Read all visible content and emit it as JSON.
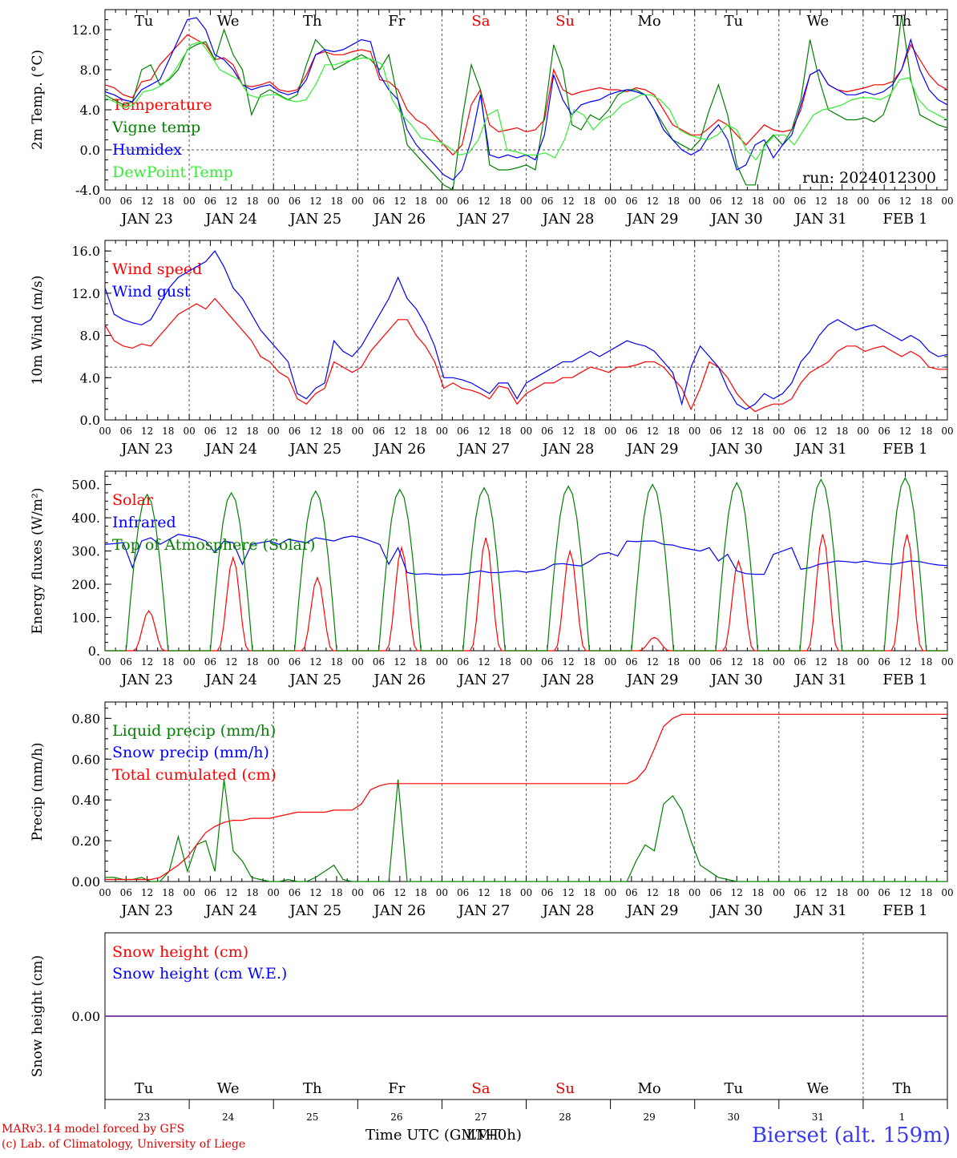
{
  "chart_data": [
    {
      "type": "line",
      "ylabel": "2m Temp. (°C)",
      "yticks": [
        "-4.0",
        "0.0",
        "4.0",
        "8.0",
        "12.0"
      ],
      "ylim": [
        -4,
        14
      ],
      "ref_line": 0,
      "day_names": [
        "Tu",
        "We",
        "Th",
        "Fr",
        "Sa",
        "Su",
        "Mo",
        "Tu",
        "We",
        "Th"
      ],
      "weekend_days": [
        4,
        5
      ],
      "annotation": "run: 2024012300",
      "series": [
        {
          "name": "Temperature",
          "color": "#ff0000",
          "values": [
            6.5,
            6.2,
            5.5,
            5.2,
            6.8,
            7.0,
            8.5,
            9.5,
            10.5,
            11.5,
            11.0,
            10.5,
            9.0,
            9.2,
            8.5,
            6.5,
            6.3,
            6.5,
            6.8,
            6.0,
            5.8,
            6.0,
            7.5,
            9.5,
            9.8,
            9.5,
            9.5,
            9.8,
            10.0,
            9.8,
            7.0,
            6.8,
            6.0,
            4.0,
            3.0,
            2.5,
            1.5,
            0.5,
            -0.5,
            0.5,
            4.5,
            6.0,
            2.5,
            1.8,
            2.0,
            2.2,
            1.8,
            2.0,
            3.0,
            8.0,
            6.0,
            5.5,
            5.8,
            6.0,
            6.2,
            6.0,
            6.0,
            5.8,
            6.2,
            6.0,
            5.5,
            4.0,
            2.5,
            2.0,
            1.5,
            1.5,
            2.2,
            3.0,
            2.5,
            1.5,
            0.5,
            1.5,
            2.5,
            2.0,
            1.8,
            2.0,
            4.0,
            7.5,
            8.0,
            6.5,
            6.0,
            5.8,
            6.0,
            6.2,
            6.5,
            6.5,
            6.8,
            8.0,
            10.5,
            9.0,
            7.5,
            6.5,
            6.0
          ]
        },
        {
          "name": "Vigne temp",
          "color": "#008000",
          "values": [
            5.5,
            5.0,
            4.5,
            4.8,
            8.0,
            8.5,
            6.5,
            7.0,
            8.0,
            10.0,
            10.5,
            10.8,
            9.0,
            12.0,
            9.5,
            8.0,
            3.5,
            5.5,
            6.0,
            5.5,
            5.0,
            5.5,
            8.5,
            11.0,
            10.0,
            8.0,
            8.5,
            9.0,
            9.5,
            9.0,
            8.0,
            9.5,
            5.0,
            0.5,
            -0.5,
            -1.5,
            -2.5,
            -3.5,
            -4.0,
            3.0,
            8.5,
            6.0,
            -1.5,
            -2.0,
            -2.0,
            -1.8,
            -1.5,
            -2.0,
            3.5,
            10.5,
            8.0,
            2.5,
            2.0,
            3.5,
            3.0,
            4.0,
            5.5,
            6.0,
            6.0,
            5.5,
            4.0,
            2.5,
            1.0,
            0.5,
            0.0,
            1.0,
            4.0,
            6.5,
            3.5,
            -1.5,
            -3.5,
            -3.5,
            0.5,
            1.5,
            0.5,
            2.0,
            5.0,
            11.0,
            7.0,
            4.0,
            3.5,
            3.0,
            3.0,
            3.2,
            2.8,
            3.5,
            6.0,
            13.5,
            7.0,
            3.5,
            3.0,
            2.5,
            2.2
          ]
        },
        {
          "name": "Humidex",
          "color": "#0000ff",
          "values": [
            5.8,
            5.5,
            5.0,
            4.8,
            6.0,
            6.5,
            7.0,
            9.0,
            11.0,
            13.0,
            13.2,
            12.0,
            9.5,
            9.0,
            8.0,
            6.5,
            6.0,
            6.3,
            6.5,
            5.8,
            5.5,
            5.8,
            7.0,
            9.5,
            10.0,
            9.8,
            10.0,
            10.5,
            11.0,
            10.8,
            7.5,
            6.0,
            5.0,
            2.0,
            0.5,
            -0.5,
            -1.5,
            -2.5,
            -3.0,
            -2.0,
            1.0,
            5.5,
            -0.5,
            -0.8,
            -0.5,
            -0.8,
            -0.5,
            -1.0,
            1.5,
            7.5,
            5.0,
            3.5,
            4.5,
            4.8,
            5.0,
            5.5,
            5.8,
            6.0,
            5.8,
            5.5,
            4.0,
            2.0,
            1.0,
            0.0,
            -0.5,
            0.0,
            1.5,
            2.5,
            1.0,
            -2.0,
            -1.5,
            0.5,
            1.0,
            -0.8,
            0.5,
            1.5,
            4.5,
            7.5,
            8.0,
            6.5,
            6.0,
            5.5,
            5.5,
            5.8,
            5.5,
            5.8,
            6.5,
            8.0,
            11.0,
            8.0,
            6.0,
            5.0,
            4.5
          ]
        },
        {
          "name": "DewPoint Temp",
          "color": "#33ee33",
          "values": [
            5.2,
            4.8,
            4.2,
            4.5,
            5.8,
            6.0,
            6.5,
            7.5,
            9.0,
            10.5,
            10.8,
            9.5,
            8.0,
            7.5,
            7.0,
            5.5,
            5.2,
            5.5,
            5.5,
            5.0,
            4.8,
            5.0,
            6.5,
            8.5,
            8.5,
            8.8,
            9.0,
            9.2,
            9.0,
            8.5,
            5.0,
            3.5,
            2.5,
            1.2,
            1.0,
            0.8,
            0.2,
            -0.5,
            -0.3,
            1.0,
            3.5,
            4.0,
            0.0,
            -0.2,
            -0.5,
            -0.5,
            -0.3,
            -0.8,
            1.0,
            4.0,
            3.5,
            2.0,
            3.0,
            3.5,
            4.5,
            5.0,
            5.5,
            5.5,
            5.0,
            4.0,
            2.0,
            1.5,
            1.2,
            1.0,
            1.5,
            2.5,
            2.0,
            0.0,
            -1.0,
            0.5,
            1.5,
            1.5,
            0.5,
            2.0,
            3.5,
            4.0,
            4.2,
            4.5,
            5.0,
            5.2,
            5.2,
            5.0,
            5.5,
            7.0,
            7.2,
            5.0,
            4.0,
            3.5,
            3.0
          ]
        }
      ]
    },
    {
      "type": "line",
      "ylabel": "10m Wind (m/s)",
      "yticks": [
        "0.0",
        "4.0",
        "8.0",
        "12.0",
        "16.0"
      ],
      "ylim": [
        0,
        17
      ],
      "ref_line": 5,
      "series": [
        {
          "name": "Wind speed",
          "color": "#ff0000",
          "values": [
            9.0,
            7.5,
            7.0,
            6.8,
            7.2,
            7.0,
            8.0,
            9.0,
            10.0,
            10.5,
            11.0,
            10.5,
            11.5,
            10.5,
            9.5,
            8.5,
            7.5,
            6.0,
            5.5,
            4.5,
            4.0,
            2.0,
            1.5,
            2.5,
            3.0,
            5.5,
            5.0,
            4.5,
            5.0,
            6.5,
            7.5,
            8.5,
            9.5,
            9.5,
            8.0,
            7.0,
            5.5,
            3.0,
            3.5,
            3.0,
            2.8,
            2.5,
            2.0,
            3.2,
            3.0,
            1.5,
            2.5,
            3.0,
            3.5,
            3.5,
            4.0,
            4.0,
            4.5,
            5.0,
            4.8,
            4.5,
            5.0,
            5.0,
            5.2,
            5.5,
            5.5,
            5.0,
            4.0,
            3.0,
            1.0,
            3.0,
            5.5,
            5.0,
            4.0,
            2.5,
            1.5,
            0.8,
            1.2,
            1.5,
            1.5,
            2.0,
            3.5,
            4.5,
            5.0,
            5.5,
            6.5,
            7.0,
            7.0,
            6.5,
            6.8,
            7.0,
            6.5,
            6.0,
            6.5,
            6.0,
            5.0,
            4.8,
            4.8
          ]
        },
        {
          "name": "Wind gust",
          "color": "#0000ff",
          "values": [
            12.5,
            10.0,
            9.5,
            9.2,
            9.0,
            9.5,
            11.0,
            12.5,
            13.5,
            14.0,
            14.5,
            15.0,
            16.0,
            14.5,
            12.5,
            11.5,
            10.0,
            8.5,
            7.5,
            6.5,
            5.5,
            2.5,
            2.0,
            3.0,
            3.5,
            7.5,
            6.5,
            6.0,
            7.0,
            8.5,
            10.0,
            11.5,
            13.5,
            11.5,
            10.5,
            9.0,
            7.0,
            4.0,
            4.0,
            3.8,
            3.5,
            3.0,
            2.5,
            3.5,
            3.5,
            2.0,
            3.5,
            4.0,
            4.5,
            5.0,
            5.5,
            5.5,
            6.0,
            6.5,
            6.0,
            6.5,
            7.0,
            7.5,
            7.2,
            7.0,
            6.5,
            5.5,
            4.5,
            1.5,
            5.0,
            7.0,
            6.0,
            5.0,
            3.0,
            1.5,
            1.0,
            1.5,
            2.5,
            2.0,
            2.5,
            3.5,
            5.5,
            6.5,
            8.0,
            9.0,
            9.5,
            9.0,
            8.5,
            8.8,
            9.0,
            8.5,
            8.0,
            7.5,
            8.0,
            7.5,
            6.5,
            6.0,
            6.2
          ]
        }
      ]
    },
    {
      "type": "line",
      "ylabel": "Energy fluxes (W/m²)",
      "yticks": [
        "0.",
        "100.",
        "200.",
        "300.",
        "400.",
        "500."
      ],
      "ylim": [
        0,
        540
      ],
      "series": [
        {
          "name": "Solar",
          "color": "#ff0000",
          "day_peaks": [
            120,
            280,
            220,
            310,
            340,
            300,
            40,
            270,
            350,
            350
          ]
        },
        {
          "name": "Infrared",
          "color": "#0000ff",
          "values": [
            320,
            322,
            325,
            250,
            330,
            340,
            320,
            335,
            350,
            345,
            340,
            330,
            295,
            330,
            325,
            260,
            320,
            325,
            330,
            320,
            335,
            330,
            325,
            340,
            335,
            330,
            340,
            345,
            340,
            330,
            320,
            260,
            310,
            235,
            230,
            232,
            230,
            228,
            230,
            230,
            235,
            240,
            235,
            235,
            238,
            240,
            236,
            240,
            245,
            260,
            262,
            258,
            255,
            270,
            290,
            295,
            285,
            330,
            328,
            330,
            330,
            320,
            318,
            310,
            305,
            300,
            310,
            270,
            290,
            240,
            232,
            230,
            230,
            290,
            300,
            310,
            245,
            250,
            260,
            265,
            270,
            268,
            265,
            270,
            265,
            262,
            260,
            265,
            270,
            268,
            262,
            258,
            256
          ]
        },
        {
          "name": "Top of Atmosphere (Solar)",
          "color": "#008000",
          "day_peaks": [
            470,
            475,
            480,
            485,
            490,
            495,
            500,
            505,
            515,
            520
          ]
        }
      ]
    },
    {
      "type": "line",
      "ylabel": "Precip (mm/h)",
      "yticks": [
        "0.00",
        "0.20",
        "0.40",
        "0.60",
        "0.80"
      ],
      "ylim": [
        0,
        0.88
      ],
      "series": [
        {
          "name": "Liquid precip (mm/h)",
          "color": "#008000",
          "values": [
            0.02,
            0.02,
            0.01,
            0.01,
            0.02,
            0.0,
            0.0,
            0.05,
            0.22,
            0.05,
            0.18,
            0.2,
            0.05,
            0.5,
            0.15,
            0.1,
            0.02,
            0.01,
            0.0,
            0.0,
            0.01,
            0.0,
            0.0,
            0.02,
            0.05,
            0.08,
            0.01,
            0.0,
            0.0,
            0.0,
            0.0,
            0.0,
            0.5,
            0.0,
            0.0,
            0.0,
            0.0,
            0.0,
            0.0,
            0.0,
            0.0,
            0.0,
            0.0,
            0.0,
            0.0,
            0.0,
            0.0,
            0.0,
            0.0,
            0.0,
            0.0,
            0.0,
            0.0,
            0.0,
            0.0,
            0.0,
            0.0,
            0.0,
            0.1,
            0.18,
            0.15,
            0.38,
            0.42,
            0.35,
            0.2,
            0.08,
            0.05,
            0.02,
            0.01,
            0.0,
            0.0,
            0.0,
            0.0,
            0.0,
            0.0,
            0.0,
            0.0,
            0.0,
            0.0,
            0.0,
            0.0,
            0.0,
            0.0,
            0.0,
            0.0,
            0.0,
            0.0,
            0.0,
            0.0,
            0.0,
            0.0,
            0.0,
            0.0
          ]
        },
        {
          "name": "Snow precip (mm/h)",
          "color": "#0000ff",
          "values": []
        },
        {
          "name": "Total cumulated (cm)",
          "color": "#ff0000",
          "values": [
            0.01,
            0.01,
            0.01,
            0.01,
            0.01,
            0.01,
            0.02,
            0.05,
            0.08,
            0.12,
            0.18,
            0.24,
            0.27,
            0.29,
            0.3,
            0.3,
            0.31,
            0.31,
            0.31,
            0.32,
            0.33,
            0.34,
            0.34,
            0.34,
            0.34,
            0.35,
            0.35,
            0.35,
            0.38,
            0.45,
            0.47,
            0.48,
            0.48,
            0.48,
            0.48,
            0.48,
            0.48,
            0.48,
            0.48,
            0.48,
            0.48,
            0.48,
            0.48,
            0.48,
            0.48,
            0.48,
            0.48,
            0.48,
            0.48,
            0.48,
            0.48,
            0.48,
            0.48,
            0.48,
            0.48,
            0.48,
            0.48,
            0.48,
            0.5,
            0.55,
            0.65,
            0.76,
            0.8,
            0.82,
            0.82,
            0.82,
            0.82,
            0.82,
            0.82,
            0.82,
            0.82,
            0.82,
            0.82,
            0.82,
            0.82,
            0.82,
            0.82,
            0.82,
            0.82,
            0.82,
            0.82,
            0.82,
            0.82,
            0.82,
            0.82,
            0.82,
            0.82,
            0.82,
            0.82,
            0.82,
            0.82,
            0.82,
            0.82
          ]
        }
      ]
    },
    {
      "type": "line",
      "ylabel": "Snow height (cm)",
      "yticks": [
        "0.00"
      ],
      "series": [
        {
          "name": "Snow height (cm)",
          "color": "#ff0000",
          "values": [
            0,
            0
          ]
        },
        {
          "name": "Snow height (cm W.E.)",
          "color": "#0000ff",
          "values": [
            0,
            0
          ]
        }
      ]
    }
  ],
  "x_axis": {
    "hours": [
      "00",
      "06",
      "12",
      "18"
    ],
    "end_hour": "00",
    "days": [
      "JAN 23",
      "JAN 24",
      "JAN 25",
      "JAN 26",
      "JAN 27",
      "JAN 28",
      "JAN 29",
      "JAN 30",
      "JAN 31",
      "FEB  1"
    ],
    "day_numbers": [
      "23",
      "24",
      "25",
      "26",
      "27",
      "28",
      "29",
      "30",
      "31",
      "1"
    ],
    "xlabel": "Time UTC (GMT+0h)",
    "xlabel_overlap": "LMT"
  },
  "footer": {
    "credit_line1": "MARv3.14 model forced by GFS",
    "credit_line2": "(c) Lab. of Climatology, University of Liege",
    "station": "Bierset (alt. 159m)"
  },
  "colors": {
    "red": "#ff0000",
    "blue": "#0000ff",
    "green": "#008000",
    "lightgreen": "#33ee33",
    "weekend": "#e00000"
  }
}
